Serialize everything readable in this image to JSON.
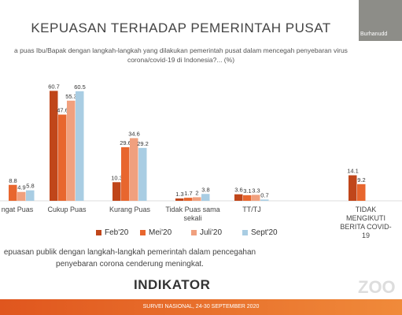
{
  "chart_data": {
    "type": "bar",
    "title": "KEPUASAN TERHADAP PEMERINTAH PUSAT",
    "subtitle": "a puas Ibu/Bapak dengan langkah-langkah yang dilakukan pemerintah pusat dalam mencegah penyebaran virus corona/covid-19 di Indonesia?... (%)",
    "categories": [
      "ngat Puas",
      "Cukup Puas",
      "Kurang Puas",
      "Tidak Puas sama sekali",
      "TT/TJ",
      "TIDAK MENGIKUTI BERITA COVID-19"
    ],
    "series": [
      {
        "name": "Feb'20",
        "color": "#c0461a",
        "values": [
          null,
          60.7,
          10.3,
          1.3,
          3.6,
          14.1
        ]
      },
      {
        "name": "Mei'20",
        "color": "#e8662e",
        "values": [
          8.8,
          47.6,
          29.6,
          1.7,
          3.1,
          9.2
        ]
      },
      {
        "name": "Juli'20",
        "color": "#f0a07e",
        "values": [
          4.9,
          55.3,
          34.6,
          2,
          3.3,
          null
        ]
      },
      {
        "name": "Sept'20",
        "color": "#a9cde3",
        "values": [
          5.8,
          60.5,
          29.2,
          3.8,
          0.7,
          null
        ]
      }
    ],
    "caption": "epuasan publik dengan langkah-langkah pemerintah dalam pencegahan penyebaran corona cenderung meningkat.",
    "logo": "INDIKATOR",
    "footer": "SURVEI NASIONAL, 24-30 SEPTEMBER 2020",
    "participant": "Burhanudd",
    "watermark": "ZOO"
  }
}
